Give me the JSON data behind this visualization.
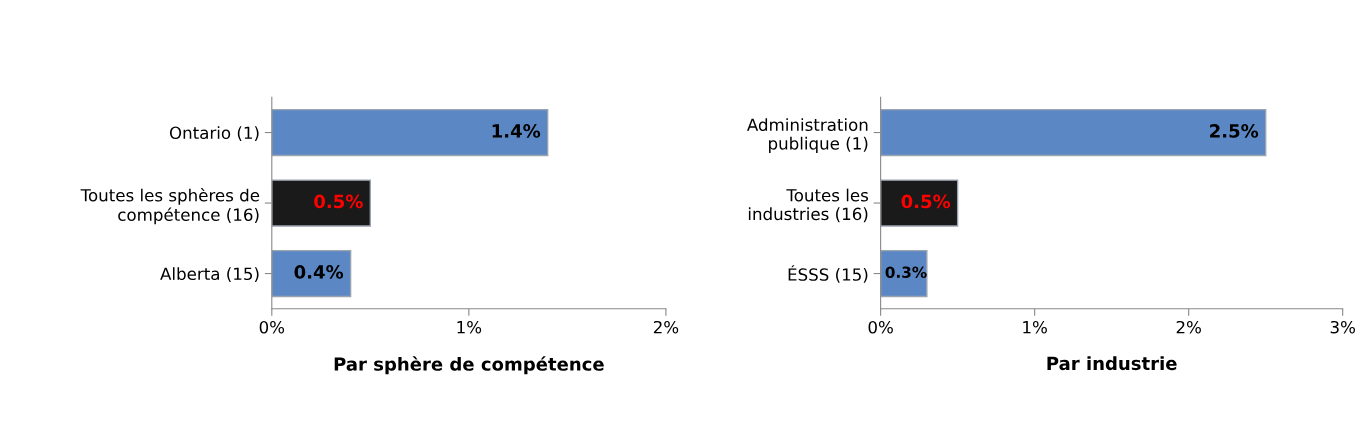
{
  "chart_data": [
    {
      "type": "bar",
      "orientation": "horizontal",
      "xlabel": "Par sphère de compétence",
      "categories": [
        "Ontario (1)",
        "Toutes les sphères de\ncompétence (16)",
        "Alberta (15)"
      ],
      "values": [
        1.4,
        0.5,
        0.4
      ],
      "colors": [
        "#5b88c4",
        "#1a1a1a",
        "#5b88c4"
      ],
      "value_labels": [
        "1.4%",
        "0.5%",
        "0.4%"
      ],
      "xlim": [
        0,
        2
      ],
      "xticks": [
        {
          "value": 0,
          "label": "0%"
        },
        {
          "value": 1,
          "label": "1%"
        },
        {
          "value": 2,
          "label": "2%"
        }
      ],
      "grid": false,
      "legend": false
    },
    {
      "type": "bar",
      "orientation": "horizontal",
      "xlabel": "Par industrie",
      "categories": [
        "Administration\npublique (1)",
        "Toutes les\nindustries (16)",
        "ÉSSS (15)"
      ],
      "values": [
        2.5,
        0.5,
        0.3
      ],
      "colors": [
        "#5b88c4",
        "#1a1a1a",
        "#5b88c4"
      ],
      "value_labels": [
        "2.5%",
        "0.5%",
        "0.3%"
      ],
      "xlim": [
        0,
        3
      ],
      "xticks": [
        {
          "value": 0,
          "label": "0%"
        },
        {
          "value": 1,
          "label": "1%"
        },
        {
          "value": 2,
          "label": "2%"
        },
        {
          "value": 3,
          "label": "3%"
        }
      ],
      "grid": false,
      "legend": false
    }
  ]
}
